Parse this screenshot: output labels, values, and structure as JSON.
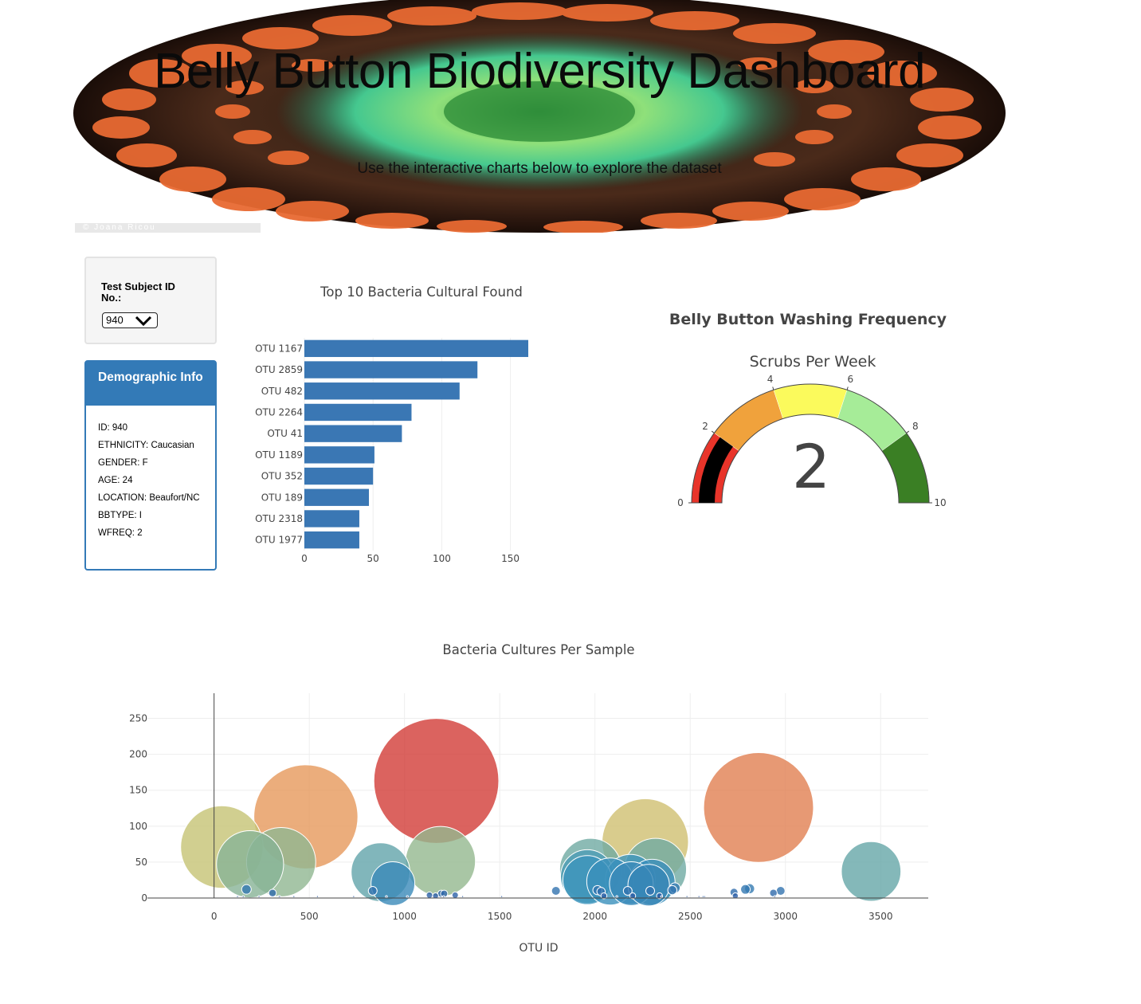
{
  "header": {
    "title": "Belly Button Biodiversity Dashboard",
    "subtitle": "Use the interactive charts below to explore the dataset",
    "credit": "© Joana Ricou"
  },
  "selector": {
    "label": "Test Subject ID No.:",
    "value": "940"
  },
  "demographics": {
    "title": "Demographic Info",
    "lines": [
      "ID: 940",
      "ETHNICITY: Caucasian",
      "GENDER: F",
      "AGE: 24",
      "LOCATION: Beaufort/NC",
      "BBTYPE: I",
      "WFREQ: 2"
    ]
  },
  "colors": {
    "accent": "#337ab7",
    "bar": "#3a77b4"
  },
  "chart_data": [
    {
      "type": "bar",
      "orientation": "horizontal",
      "title": "Top 10 Bacteria Cultural Found",
      "categories": [
        "OTU 1167",
        "OTU 2859",
        "OTU 482",
        "OTU 2264",
        "OTU 41",
        "OTU 1189",
        "OTU 352",
        "OTU 189",
        "OTU 2318",
        "OTU 1977"
      ],
      "values": [
        163,
        126,
        113,
        78,
        71,
        51,
        50,
        47,
        40,
        40
      ],
      "xlim": [
        0,
        163
      ],
      "xticks": [
        0,
        50,
        100,
        150
      ],
      "grid": true
    },
    {
      "type": "gauge",
      "title": "Belly Button Washing Frequency",
      "subtitle": "Scrubs Per Week",
      "value": 2,
      "range": [
        0,
        10
      ],
      "ticks": [
        0,
        2,
        4,
        6,
        8,
        10
      ],
      "steps": [
        {
          "range": [
            0,
            2
          ],
          "color": "#e8342a"
        },
        {
          "range": [
            2,
            4
          ],
          "color": "#f0a23c"
        },
        {
          "range": [
            4,
            6
          ],
          "color": "#fbfa5c"
        },
        {
          "range": [
            6,
            8
          ],
          "color": "#a6ec98"
        },
        {
          "range": [
            8,
            10
          ],
          "color": "#3a7f24"
        }
      ],
      "bar_color": "#000000"
    },
    {
      "type": "scatter",
      "title": "Bacteria Cultures Per Sample",
      "xlabel": "OTU ID",
      "ylabel": "",
      "xlim": [
        -350,
        3750
      ],
      "ylim": [
        0,
        285
      ],
      "xticks": [
        0,
        500,
        1000,
        1500,
        2000,
        2500,
        3000,
        3500
      ],
      "yticks": [
        0,
        50,
        100,
        150,
        200,
        250
      ],
      "grid": true,
      "points": [
        {
          "x": 1167,
          "y": 163
        },
        {
          "x": 2859,
          "y": 126
        },
        {
          "x": 482,
          "y": 113
        },
        {
          "x": 2264,
          "y": 78
        },
        {
          "x": 41,
          "y": 71
        },
        {
          "x": 1189,
          "y": 51
        },
        {
          "x": 352,
          "y": 50
        },
        {
          "x": 189,
          "y": 47
        },
        {
          "x": 2318,
          "y": 40
        },
        {
          "x": 1977,
          "y": 40
        },
        {
          "x": 3450,
          "y": 37
        },
        {
          "x": 874,
          "y": 36
        },
        {
          "x": 1960,
          "y": 30
        },
        {
          "x": 1960,
          "y": 25
        },
        {
          "x": 2186,
          "y": 26
        },
        {
          "x": 2080,
          "y": 23
        },
        {
          "x": 2300,
          "y": 22
        },
        {
          "x": 939,
          "y": 20
        },
        {
          "x": 2191,
          "y": 20
        },
        {
          "x": 2282,
          "y": 18
        },
        {
          "x": 2420,
          "y": 14
        },
        {
          "x": 2812,
          "y": 13
        },
        {
          "x": 2790,
          "y": 12
        },
        {
          "x": 170,
          "y": 12
        },
        {
          "x": 2406,
          "y": 11
        },
        {
          "x": 2013,
          "y": 11
        },
        {
          "x": 2172,
          "y": 10
        },
        {
          "x": 2290,
          "y": 10
        },
        {
          "x": 2975,
          "y": 10
        },
        {
          "x": 1795,
          "y": 10
        },
        {
          "x": 833,
          "y": 10
        },
        {
          "x": 2032,
          "y": 9
        },
        {
          "x": 2730,
          "y": 8
        },
        {
          "x": 2937,
          "y": 7
        },
        {
          "x": 307,
          "y": 7
        },
        {
          "x": 1193,
          "y": 6
        },
        {
          "x": 1208,
          "y": 6
        },
        {
          "x": 1266,
          "y": 4
        },
        {
          "x": 1131,
          "y": 4
        },
        {
          "x": 2198,
          "y": 3
        },
        {
          "x": 2339,
          "y": 3
        },
        {
          "x": 1163,
          "y": 3
        },
        {
          "x": 2047,
          "y": 3
        },
        {
          "x": 2737,
          "y": 3
        },
        {
          "x": 2944,
          "y": 2
        },
        {
          "x": 1305,
          "y": 2
        },
        {
          "x": 1205,
          "y": 2
        },
        {
          "x": 2115,
          "y": 2
        },
        {
          "x": 2483,
          "y": 2
        },
        {
          "x": 2546,
          "y": 2
        },
        {
          "x": 2576,
          "y": 2
        },
        {
          "x": 2350,
          "y": 2
        },
        {
          "x": 123,
          "y": 2
        },
        {
          "x": 153,
          "y": 2
        },
        {
          "x": 236,
          "y": 2
        },
        {
          "x": 339,
          "y": 2
        },
        {
          "x": 344,
          "y": 2
        },
        {
          "x": 419,
          "y": 2
        },
        {
          "x": 543,
          "y": 2
        },
        {
          "x": 733,
          "y": 2
        },
        {
          "x": 905,
          "y": 2
        },
        {
          "x": 1015,
          "y": 2
        },
        {
          "x": 1510,
          "y": 2
        },
        {
          "x": 2568,
          "y": 2
        }
      ]
    }
  ]
}
